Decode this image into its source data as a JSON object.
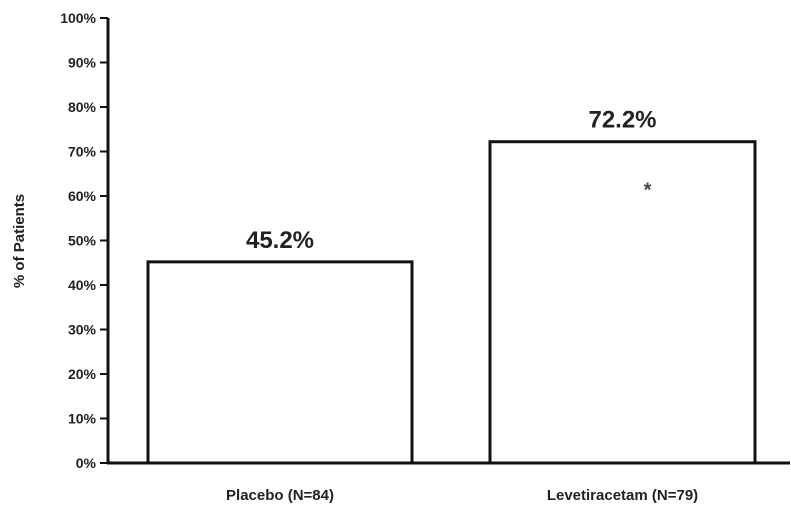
{
  "chart_data": {
    "type": "bar",
    "title": "",
    "xlabel": "",
    "ylabel": "% of Patients",
    "ylim": [
      0,
      100
    ],
    "yticks": [
      "0%",
      "10%",
      "20%",
      "30%",
      "40%",
      "50%",
      "60%",
      "70%",
      "80%",
      "90%",
      "100%"
    ],
    "categories": [
      "Placebo (N=84)",
      "Levetiracetam (N=79)"
    ],
    "values": [
      45.2,
      72.2
    ],
    "data_labels": [
      "45.2%",
      "72.2%"
    ],
    "annotations": [
      {
        "category": "Levetiracetam (N=79)",
        "text": "*"
      }
    ],
    "grid": false,
    "legend": "none",
    "colors": {
      "bar_fill": "#ffffff",
      "bar_stroke": "#111111",
      "text": "#222222"
    }
  }
}
